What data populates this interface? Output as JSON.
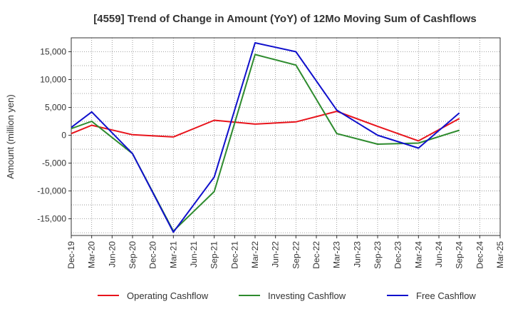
{
  "chart_data": {
    "type": "line",
    "title": "[4559]  Trend of Change in Amount (YoY) of 12Mo Moving Sum of Cashflows",
    "xlabel": "",
    "ylabel": "Amount (million yen)",
    "ylim": [
      -18000,
      17500
    ],
    "yticks": [
      -15000,
      -10000,
      -5000,
      0,
      5000,
      10000,
      15000
    ],
    "ytick_labels": [
      "-15,000",
      "-10,000",
      "-5,000",
      "0",
      "5,000",
      "10,000",
      "15,000"
    ],
    "categories": [
      "Dec-19",
      "Mar-20",
      "Jun-20",
      "Sep-20",
      "Dec-20",
      "Mar-21",
      "Jun-21",
      "Sep-21",
      "Dec-21",
      "Mar-22",
      "Jun-22",
      "Sep-22",
      "Dec-22",
      "Mar-23",
      "Jun-23",
      "Sep-23",
      "Dec-23",
      "Mar-24",
      "Jun-24",
      "Sep-24",
      "Dec-24",
      "Mar-25"
    ],
    "grid": true,
    "legend_position": "bottom",
    "series": [
      {
        "name": "Operating Cashflow",
        "color": "#e8141c",
        "values": [
          300,
          1800,
          null,
          100,
          null,
          -300,
          null,
          2700,
          null,
          2000,
          null,
          2400,
          null,
          4300,
          null,
          1600,
          null,
          -1000,
          null,
          3000,
          null,
          null
        ]
      },
      {
        "name": "Investing Cashflow",
        "color": "#2e8b2e",
        "values": [
          1200,
          2500,
          null,
          -3300,
          null,
          -17200,
          null,
          -10100,
          null,
          14500,
          null,
          12600,
          null,
          300,
          null,
          -1600,
          null,
          -1400,
          null,
          900,
          null,
          null
        ]
      },
      {
        "name": "Free Cashflow",
        "color": "#1010cc",
        "values": [
          1400,
          4200,
          null,
          -3300,
          null,
          -17400,
          null,
          -7500,
          null,
          16600,
          null,
          15000,
          null,
          4500,
          null,
          0,
          null,
          -2300,
          null,
          4000,
          null,
          null
        ]
      }
    ]
  }
}
